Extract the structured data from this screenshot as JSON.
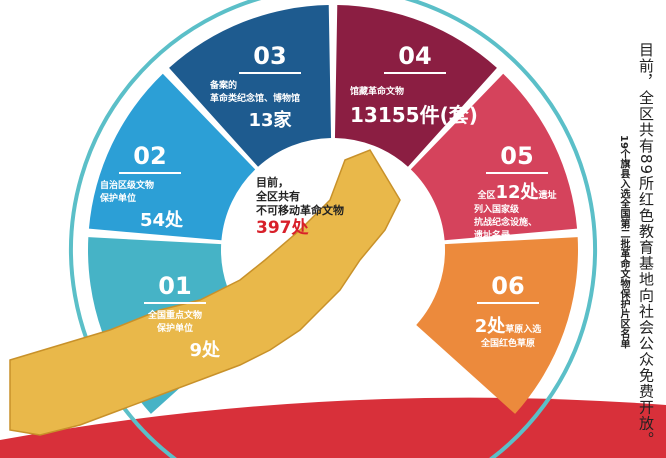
{
  "colors": {
    "s01": "#46b3c6",
    "s02": "#2c9fd6",
    "s03": "#1e5b8f",
    "s04": "#8b1e42",
    "s05": "#d5435c",
    "s06": "#ec8a3c",
    "ring": "#5bbfc8",
    "map": "#e9b84a",
    "swoosh": "#d8303a"
  },
  "center": {
    "line1": "目前，",
    "line2": "全区共有",
    "line3": "不可移动革命文物",
    "value": "397处"
  },
  "items": [
    {
      "num": "01",
      "text": "全国重点文物\n保护单位",
      "value": "9处"
    },
    {
      "num": "02",
      "text": "自治区级文物\n保护单位",
      "value": "54处"
    },
    {
      "num": "03",
      "text": "备案的\n革命类纪念馆、博物馆",
      "value": "13家"
    },
    {
      "num": "04",
      "text": "馆藏革命文物",
      "value": "13155件(套)"
    },
    {
      "num": "05",
      "pre": "全区",
      "value": "12处",
      "post": "遗址",
      "text": "列入国家级\n抗战纪念设施、\n遗址名录"
    },
    {
      "num": "06",
      "value": "2处",
      "post": "草原入选",
      "text": "全国红色草原"
    }
  ],
  "side": {
    "main": "目前，全区共有89所红色教育基地向社会公众免费开放。",
    "sub": "19个旗县入选全国第二批革命文物保护片区名单"
  }
}
